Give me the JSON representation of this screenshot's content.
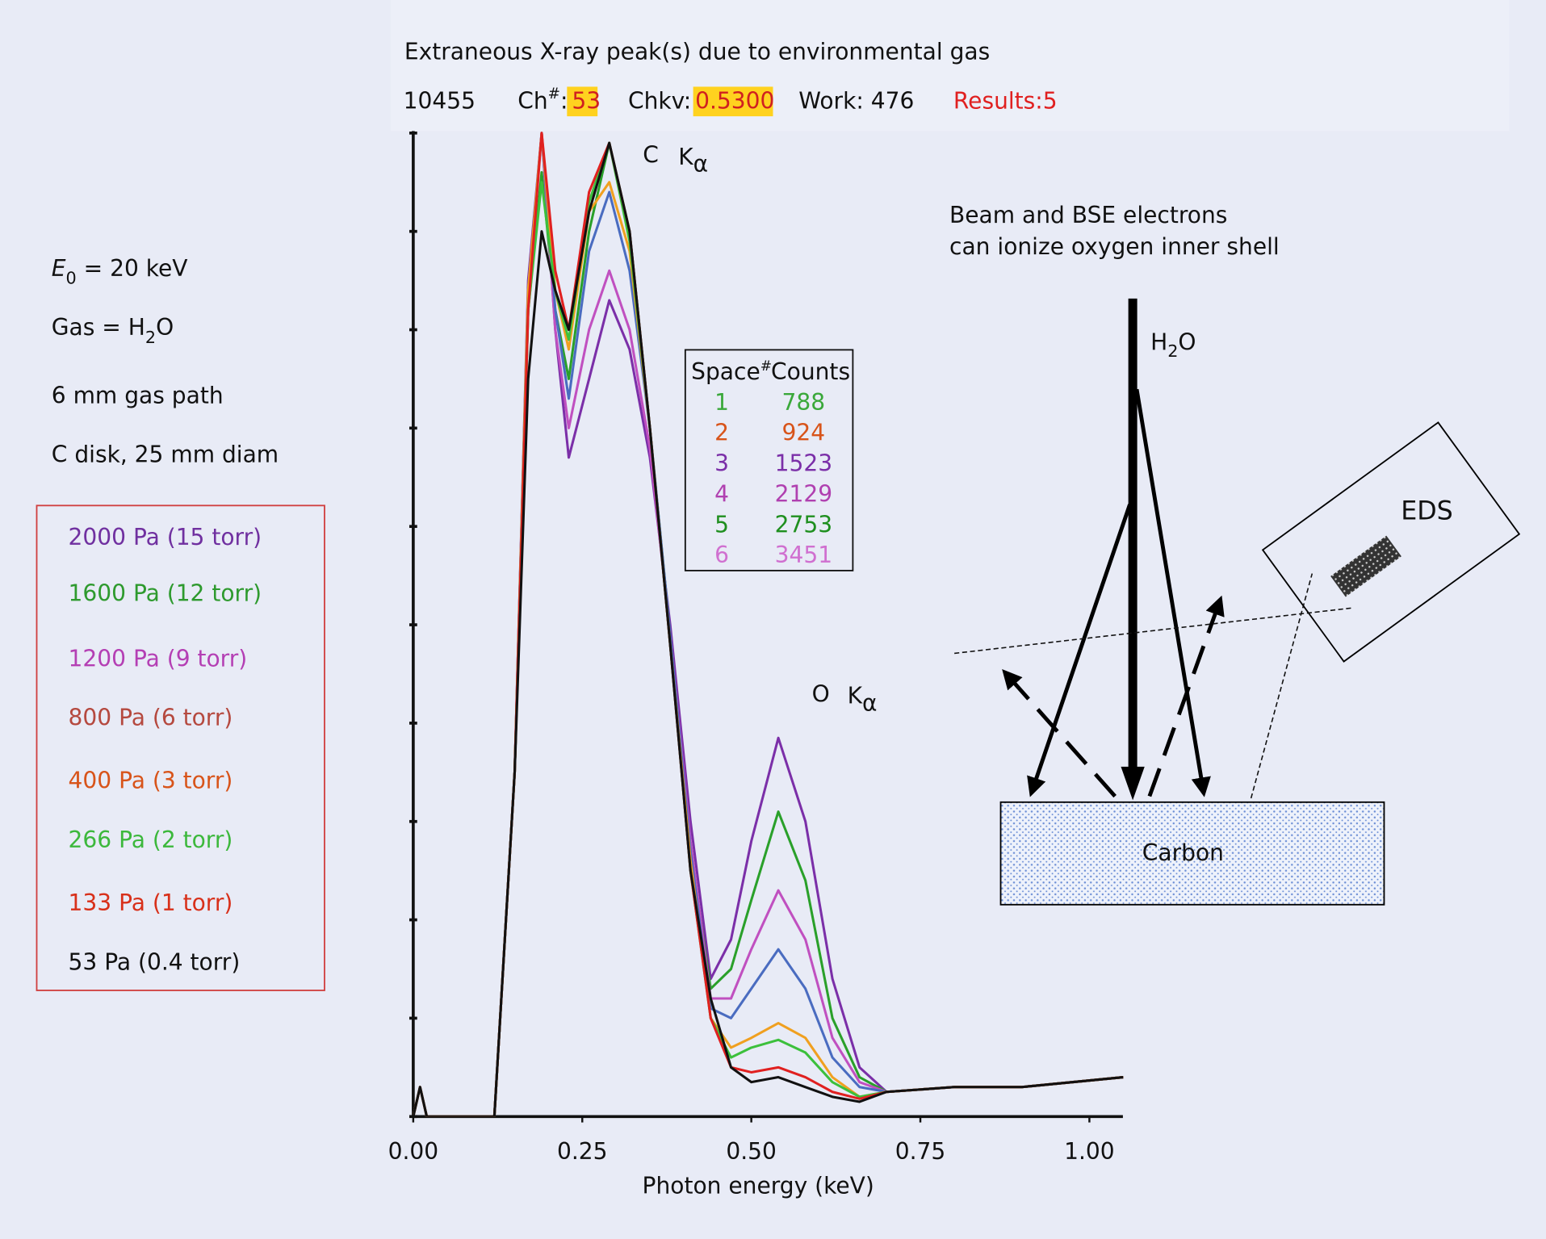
{
  "header": {
    "title": "Extraneous X-ray peak(s) due to environmental gas",
    "id": "10455",
    "ch": {
      "label": "Ch",
      "sup": "#",
      "sep": ":",
      "value": "53"
    },
    "chkv": {
      "label": "Chkv:",
      "value": "0.5300"
    },
    "work": "Work: 476",
    "results": "Results:5"
  },
  "conditions": [
    {
      "symbol": "E",
      "sub": "0",
      "text": " = 20 keV"
    },
    {
      "symbol": "Gas = H",
      "sub": "2",
      "text": "O"
    },
    {
      "symbol": "6 mm gas path",
      "sub": "",
      "text": ""
    },
    {
      "symbol": "C disk, 25 mm diam",
      "sub": "",
      "text": ""
    }
  ],
  "table": {
    "columns": [
      {
        "label": "Space",
        "sup": "#"
      },
      {
        "label": "Counts",
        "sup": ""
      }
    ],
    "rows": [
      [
        1,
        788
      ],
      [
        2,
        924
      ],
      [
        3,
        1523
      ],
      [
        4,
        2129
      ],
      [
        5,
        2753
      ],
      [
        6,
        3451
      ]
    ],
    "row_colors": [
      "#3aa83a",
      "#d8541a",
      "#7b2fa8",
      "#b040b0",
      "#1f8f1f",
      "#d070d0"
    ]
  },
  "diagram": {
    "text": [
      "Beam and BSE electrons",
      "can ionize oxygen inner shell"
    ],
    "gas": {
      "a": "H",
      "sub": "2",
      "b": "O"
    },
    "detector": "EDS",
    "sample": "Carbon"
  },
  "chart_data": {
    "type": "line",
    "x_label": "Photon energy (keV)",
    "annotations": [
      {
        "element": "C",
        "line": "K",
        "sub": "α",
        "x": 0.29
      },
      {
        "element": "O",
        "line": "K",
        "sub": "α",
        "x": 0.54
      }
    ],
    "xlim": [
      0,
      1.05
    ],
    "ylim": [
      0,
      100
    ],
    "xticks": [
      {
        "value": 0,
        "label": "0.00"
      },
      {
        "value": 0.25,
        "label": "0.25"
      },
      {
        "value": 0.5,
        "label": "0.50"
      },
      {
        "value": 0.75,
        "label": "0.75"
      },
      {
        "value": 1,
        "label": "1.00"
      }
    ],
    "yticks": [
      0,
      10,
      20,
      30,
      40,
      50,
      60,
      70,
      80,
      90,
      100
    ],
    "legend": "left",
    "x": [
      0,
      0.01,
      0.02,
      0.12,
      0.15,
      0.17,
      0.19,
      0.21,
      0.23,
      0.26,
      0.29,
      0.32,
      0.35,
      0.38,
      0.41,
      0.44,
      0.47,
      0.5,
      0.54,
      0.58,
      0.62,
      0.66,
      0.7,
      0.8,
      0.9,
      1.05
    ],
    "series": [
      {
        "name": "2000 Pa (15 torr)",
        "color": "#7b2fa8",
        "legend_color": "#7030a0",
        "values": [
          0,
          3,
          0,
          0,
          35,
          85,
          100,
          80,
          67,
          75,
          83,
          78,
          67,
          50,
          30,
          14,
          18,
          28,
          38.5,
          30,
          14,
          5,
          2.5,
          3,
          3,
          4
        ]
      },
      {
        "name": "1600 Pa (12 torr)",
        "color": "#2aa02a",
        "legend_color": "#2e9a2e",
        "values": [
          0,
          3,
          0,
          0,
          35,
          82,
          96,
          82,
          75,
          90,
          99,
          90,
          70,
          49,
          27,
          13,
          15,
          22,
          31,
          24,
          10,
          4,
          2.5,
          3,
          3,
          4
        ]
      },
      {
        "name": "1200 Pa (9 torr)",
        "color": "#c050c0",
        "legend_color": "#b43fb4",
        "values": [
          0,
          3,
          0,
          0,
          35,
          84,
          100,
          80,
          70,
          80,
          86,
          80,
          68,
          49,
          28,
          12,
          12,
          17,
          23,
          18,
          8,
          3.5,
          2.5,
          3,
          3,
          4
        ]
      },
      {
        "name": "800 Pa (6 torr)",
        "color": "#4a6cc0",
        "legend_color": "#b5493f",
        "values": [
          0,
          3,
          0,
          0,
          35,
          84,
          100,
          82,
          73,
          88,
          94,
          86,
          70,
          49,
          27,
          11,
          10,
          13,
          17,
          13,
          6,
          3,
          2.5,
          3,
          3,
          4
        ]
      },
      {
        "name": "400 Pa (3 torr)",
        "color": "#f0a020",
        "legend_color": "#d8541a",
        "values": [
          0,
          3,
          0,
          0,
          35,
          84,
          100,
          84,
          78,
          92,
          95,
          88,
          70,
          48,
          26,
          10,
          7,
          8,
          9.5,
          8,
          4,
          2,
          2.5,
          3,
          3,
          4
        ]
      },
      {
        "name": "266 Pa (2 torr)",
        "color": "#3cc03c",
        "legend_color": "#3cb83c",
        "values": [
          0,
          3,
          0,
          0,
          35,
          82,
          95,
          84,
          79,
          93,
          99,
          89,
          70,
          48,
          25,
          10,
          6,
          7,
          7.8,
          6.5,
          3.5,
          2,
          2.5,
          3,
          3,
          4
        ]
      },
      {
        "name": "133 Pa (1 torr)",
        "color": "#e02020",
        "legend_color": "#d8301a",
        "values": [
          0,
          3,
          0,
          0,
          35,
          82,
          100,
          86,
          80,
          94,
          99,
          90,
          70,
          48,
          25,
          10,
          5,
          4.5,
          5,
          4,
          2.5,
          1.8,
          2.5,
          3,
          3,
          4
        ]
      },
      {
        "name": "53 Pa (0.4 torr)",
        "color": "#111111",
        "legend_color": "#111111",
        "values": [
          0,
          3,
          0,
          0,
          35,
          75,
          90,
          84,
          80,
          92,
          99,
          90,
          70,
          48,
          25,
          12,
          5,
          3.5,
          4,
          3,
          2,
          1.5,
          2.5,
          3,
          3,
          4
        ]
      }
    ]
  }
}
